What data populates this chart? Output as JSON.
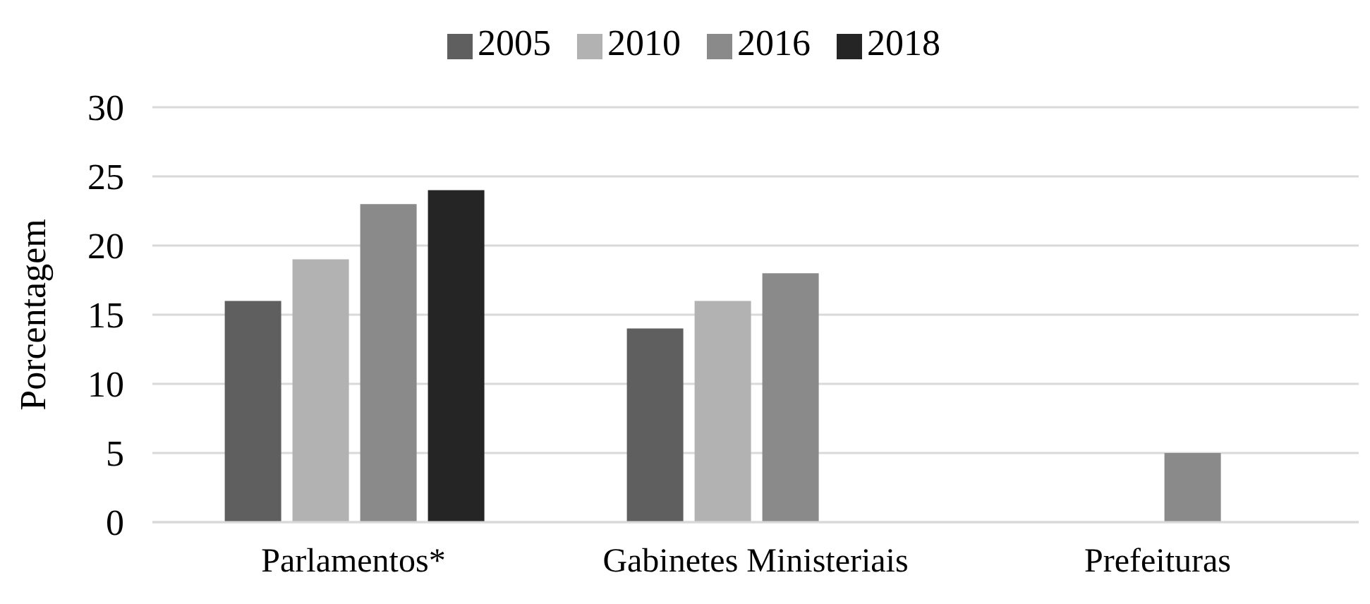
{
  "chart_data": {
    "type": "bar",
    "ylabel": "Porcentagem",
    "categories": [
      "Parlamentos*",
      "Gabinetes Ministeriais",
      "Prefeituras"
    ],
    "series": [
      {
        "name": "2005",
        "color": "#5f5f5f",
        "values": [
          16,
          14,
          null
        ]
      },
      {
        "name": "2010",
        "color": "#b2b2b2",
        "values": [
          19,
          16,
          null
        ]
      },
      {
        "name": "2016",
        "color": "#8a8a8a",
        "values": [
          23,
          18,
          5
        ]
      },
      {
        "name": "2018",
        "color": "#252525",
        "values": [
          24,
          null,
          null
        ]
      }
    ],
    "ylim": [
      0,
      30
    ],
    "yticks": [
      0,
      5,
      10,
      15,
      20,
      25,
      30
    ],
    "grid": "y",
    "legend": "top"
  }
}
